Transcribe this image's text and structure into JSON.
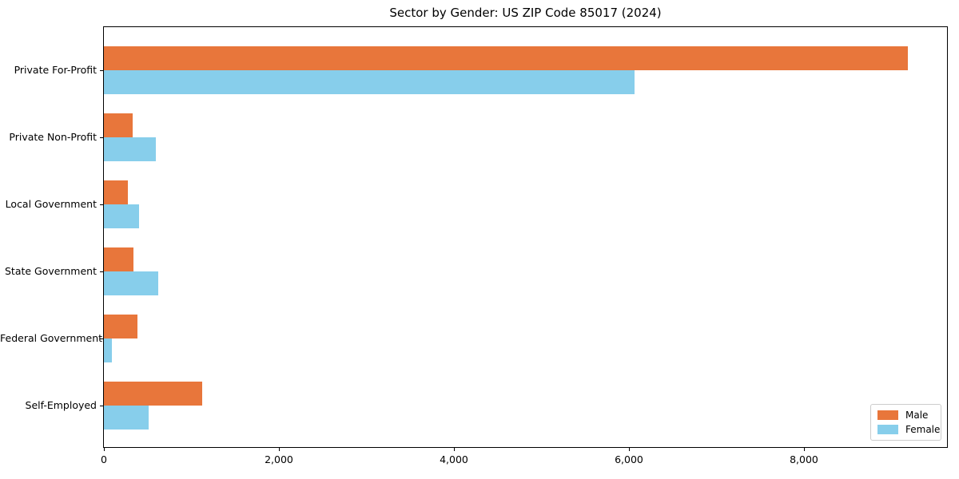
{
  "page": {
    "background": "#ffffff"
  },
  "chart_data": {
    "type": "bar",
    "orientation": "horizontal",
    "title": "Sector by Gender: US ZIP Code 85017 (2024)",
    "categories": [
      "Private For-Profit",
      "Private Non-Profit",
      "Local Government",
      "State Government",
      "Federal Government",
      "Self-Employed"
    ],
    "series": [
      {
        "name": "Male",
        "color": "#E8763B",
        "values": [
          9180,
          325,
          270,
          335,
          380,
          1125
        ]
      },
      {
        "name": "Female",
        "color": "#87CEEB",
        "values": [
          6060,
          590,
          400,
          625,
          90,
          515
        ]
      }
    ],
    "xlabel": "",
    "ylabel": "",
    "xlim": [
      0,
      9630
    ],
    "xticks": [
      0,
      2000,
      4000,
      6000,
      8000
    ],
    "xtick_labels": [
      "0",
      "2,000",
      "4,000",
      "6,000",
      "8,000"
    ],
    "grid": false,
    "legend": {
      "position": "lower-right"
    },
    "axis_color": "#000000",
    "legend_border_color": "#cccccc"
  }
}
